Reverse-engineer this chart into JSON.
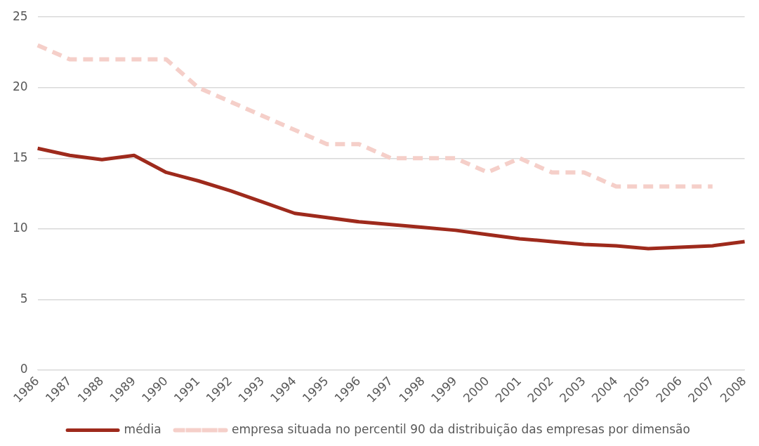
{
  "chart_data": {
    "type": "line",
    "categories": [
      "1986",
      "1987",
      "1988",
      "1989",
      "1990",
      "1991",
      "1992",
      "1993",
      "1994",
      "1995",
      "1996",
      "1997",
      "1998",
      "1999",
      "2000",
      "2001",
      "2002",
      "2003",
      "2004",
      "2005",
      "2006",
      "2007",
      "2008"
    ],
    "series": [
      {
        "name": "média",
        "color": "#9e2a1c",
        "line_style": "solid",
        "values": [
          15.7,
          15.2,
          14.9,
          15.2,
          14.0,
          13.4,
          12.7,
          11.9,
          11.1,
          10.8,
          10.5,
          10.3,
          10.1,
          9.9,
          9.6,
          9.3,
          9.1,
          8.9,
          8.8,
          8.6,
          8.7,
          8.8,
          9.1
        ]
      },
      {
        "name": "empresa situada no percentil 90 da distribuição das empresas por dimensão",
        "color": "#f5cfc9",
        "line_style": "dashed",
        "values": [
          23,
          22,
          22,
          22,
          22,
          20,
          19,
          18,
          17,
          16,
          16,
          15,
          15,
          15,
          14,
          15,
          14,
          14,
          13,
          13,
          13,
          13,
          null
        ]
      }
    ],
    "ylim": [
      0,
      25
    ],
    "yticks": [
      0,
      5,
      10,
      15,
      20,
      25
    ],
    "grid": "y",
    "legend": "bottom",
    "marker": "none"
  }
}
